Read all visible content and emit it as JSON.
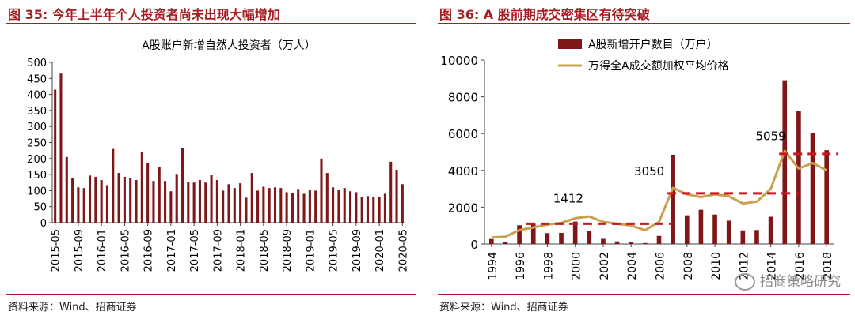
{
  "left": {
    "title": "图 35:  今年上半年个人投资者尚未出现大幅增加",
    "source": "资料来源：Wind、招商证券",
    "chart_data": {
      "type": "bar",
      "title": "A股账户新增自然人投资者（万人）",
      "ylim": [
        0,
        500
      ],
      "yticks": [
        0,
        50,
        100,
        150,
        200,
        250,
        300,
        350,
        400,
        450,
        500
      ],
      "categories": [
        "2015-05",
        "2015-06",
        "2015-07",
        "2015-08",
        "2015-09",
        "2015-10",
        "2015-11",
        "2015-12",
        "2016-01",
        "2016-02",
        "2016-03",
        "2016-04",
        "2016-05",
        "2016-06",
        "2016-07",
        "2016-08",
        "2016-09",
        "2016-10",
        "2016-11",
        "2016-12",
        "2017-01",
        "2017-02",
        "2017-03",
        "2017-04",
        "2017-05",
        "2017-06",
        "2017-07",
        "2017-08",
        "2017-09",
        "2017-10",
        "2017-11",
        "2017-12",
        "2018-01",
        "2018-02",
        "2018-03",
        "2018-04",
        "2018-05",
        "2018-06",
        "2018-07",
        "2018-08",
        "2018-09",
        "2018-10",
        "2018-11",
        "2018-12",
        "2019-01",
        "2019-02",
        "2019-03",
        "2019-04",
        "2019-05",
        "2019-06",
        "2019-07",
        "2019-08",
        "2019-09",
        "2019-10",
        "2019-11",
        "2019-12",
        "2020-01",
        "2020-02",
        "2020-03",
        "2020-04",
        "2020-05"
      ],
      "values": [
        415,
        465,
        205,
        138,
        110,
        108,
        147,
        143,
        133,
        117,
        230,
        155,
        143,
        140,
        133,
        220,
        185,
        130,
        175,
        130,
        98,
        152,
        233,
        128,
        125,
        133,
        125,
        150,
        133,
        100,
        120,
        108,
        123,
        78,
        155,
        100,
        112,
        108,
        110,
        108,
        95,
        93,
        105,
        90,
        102,
        100,
        200,
        155,
        110,
        103,
        108,
        98,
        95,
        80,
        83,
        80,
        80,
        90,
        190,
        165,
        120
      ],
      "xticks": [
        "2015-05",
        "2015-09",
        "2016-01",
        "2016-05",
        "2016-09",
        "2017-01",
        "2017-05",
        "2017-09",
        "2018-01",
        "2018-05",
        "2018-09",
        "2019-01",
        "2019-05",
        "2019-09",
        "2020-01",
        "2020-05"
      ],
      "colors": {
        "bar": "#7f1618"
      }
    }
  },
  "right": {
    "title": "图 36:  A 股前期成交密集区有待突破",
    "source": "资料来源：Wind、招商证券",
    "watermark": "招商策略研究",
    "chart_data": {
      "type": "bar+line",
      "ylim": [
        0,
        10000
      ],
      "yticks": [
        0,
        2000,
        4000,
        6000,
        8000,
        10000
      ],
      "x": [
        1994,
        1995,
        1996,
        1997,
        1998,
        1999,
        2000,
        2001,
        2002,
        2003,
        2004,
        2005,
        2006,
        2007,
        2008,
        2009,
        2010,
        2011,
        2012,
        2013,
        2014,
        2015,
        2016,
        2017,
        2018
      ],
      "xtick_labels": [
        "1994",
        "1996",
        "1998",
        "2000",
        "2002",
        "2004",
        "2006",
        "2008",
        "2010",
        "2012",
        "2014",
        "2016",
        "2018"
      ],
      "series": [
        {
          "name": "A股新增开户数目（万户）",
          "type": "bar",
          "color": "#7f1618",
          "values": [
            270,
            130,
            1020,
            1100,
            590,
            600,
            1220,
            700,
            280,
            140,
            100,
            50,
            440,
            4850,
            1560,
            1860,
            1600,
            1270,
            740,
            760,
            1480,
            8900,
            7250,
            6050,
            5100
          ]
        },
        {
          "name": "万得全A成交额加权平均价格",
          "type": "line",
          "color": "#c9a04d",
          "values": [
            350,
            400,
            750,
            900,
            1050,
            1150,
            1400,
            1500,
            1200,
            1100,
            1000,
            750,
            1200,
            3050,
            2700,
            2550,
            2700,
            2600,
            2200,
            2300,
            3000,
            5059,
            4100,
            4400,
            4000
          ]
        }
      ],
      "reference_lines": [
        {
          "label": "1412",
          "value": 1100,
          "from": 1996.5,
          "to": 2007.0,
          "color": "#c8171e"
        },
        {
          "label": "3050",
          "value": 2750,
          "from": 2006.6,
          "to": 2016.0,
          "color": "#c8171e"
        },
        {
          "label": "5059",
          "value": 4900,
          "from": 2014.6,
          "to": 2018.8,
          "color": "#c8171e"
        }
      ]
    }
  }
}
